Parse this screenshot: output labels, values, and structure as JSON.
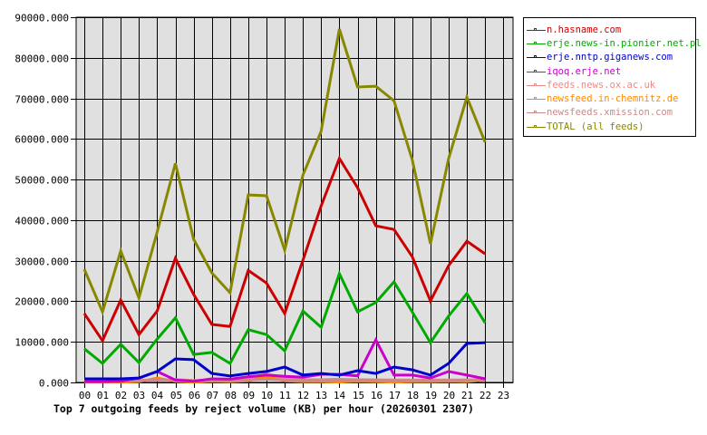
{
  "chart_data": {
    "type": "line",
    "title": "Top 7 outgoing feeds by reject volume (KB) per hour (20260301 2307)",
    "xlabel": "",
    "ylabel": "",
    "ylim": [
      0,
      90000
    ],
    "grid": true,
    "legend_position": "right-top",
    "categories": [
      "00",
      "01",
      "02",
      "03",
      "04",
      "05",
      "06",
      "07",
      "08",
      "09",
      "10",
      "11",
      "12",
      "13",
      "14",
      "15",
      "16",
      "17",
      "18",
      "19",
      "20",
      "21",
      "22",
      "23"
    ],
    "y_ticks": [
      "0.000",
      "10000.000",
      "20000.000",
      "30000.000",
      "40000.000",
      "50000.000",
      "60000.000",
      "70000.000",
      "80000.000",
      "90000.000"
    ],
    "series": [
      {
        "name": "n.hasname.com",
        "color": "#cc0000",
        "values": [
          17000,
          10300,
          20300,
          11800,
          17600,
          30600,
          21700,
          14300,
          13800,
          27600,
          24500,
          17000,
          30100,
          43500,
          55200,
          48000,
          38600,
          37700,
          31000,
          20100,
          28800,
          34800,
          31700,
          null
        ]
      },
      {
        "name": "erje.news-in.pionier.net.pl",
        "color": "#00aa00",
        "values": [
          8300,
          4700,
          9400,
          4900,
          10700,
          15900,
          6900,
          7400,
          4700,
          13000,
          11800,
          7800,
          17600,
          13600,
          26800,
          17400,
          19700,
          24800,
          17400,
          9800,
          16400,
          21900,
          14700,
          null
        ]
      },
      {
        "name": "erje.nntp.giganews.com",
        "color": "#0000cc",
        "values": [
          900,
          900,
          900,
          1100,
          2700,
          5800,
          5600,
          2200,
          1600,
          2200,
          2700,
          3800,
          1800,
          2200,
          1800,
          2900,
          2200,
          3800,
          3100,
          1800,
          4700,
          9600,
          9800,
          null
        ]
      },
      {
        "name": "iqoq.erje.net",
        "color": "#cc00cc",
        "values": [
          200,
          200,
          300,
          1100,
          2700,
          600,
          300,
          900,
          800,
          1400,
          1800,
          1500,
          1300,
          2000,
          2000,
          1600,
          10500,
          1800,
          1800,
          1100,
          2700,
          1800,
          900,
          null
        ]
      },
      {
        "name": "feeds.news.ox.ac.uk",
        "color": "#ee8888",
        "values": [
          400,
          400,
          400,
          500,
          600,
          700,
          500,
          500,
          600,
          900,
          2100,
          1100,
          700,
          700,
          800,
          700,
          600,
          600,
          600,
          600,
          600,
          600,
          600,
          null
        ]
      },
      {
        "name": "newsfeed.in-chemnitz.de",
        "color": "#ff8800",
        "values": [
          100,
          100,
          100,
          200,
          1100,
          300,
          100,
          300,
          200,
          400,
          1500,
          400,
          200,
          200,
          100,
          300,
          200,
          100,
          200,
          200,
          300,
          200,
          600,
          null
        ]
      },
      {
        "name": "newsfeeds.xmission.com",
        "color": "#cc8888",
        "values": [
          400,
          400,
          400,
          500,
          600,
          600,
          400,
          500,
          500,
          600,
          800,
          600,
          500,
          500,
          600,
          600,
          600,
          500,
          500,
          500,
          500,
          600,
          600,
          null
        ]
      },
      {
        "name": "TOTAL (all feeds)",
        "color": "#888800",
        "values": [
          27900,
          17400,
          32400,
          20800,
          37100,
          54000,
          35300,
          27000,
          22100,
          46200,
          46000,
          32600,
          51100,
          61900,
          87100,
          72800,
          73000,
          69400,
          54900,
          34200,
          55200,
          70300,
          59200,
          null
        ]
      }
    ]
  },
  "legend": {
    "items": [
      {
        "label": "n.hasname.com",
        "color": "#cc0000"
      },
      {
        "label": "erje.news-in.pionier.net.pl",
        "color": "#00aa00"
      },
      {
        "label": "erje.nntp.giganews.com",
        "color": "#0000cc"
      },
      {
        "label": "iqoq.erje.net",
        "color": "#cc00cc"
      },
      {
        "label": "feeds.news.ox.ac.uk",
        "color": "#ee8888"
      },
      {
        "label": "newsfeed.in-chemnitz.de",
        "color": "#ff8800"
      },
      {
        "label": "newsfeeds.xmission.com",
        "color": "#cc8888"
      },
      {
        "label": "TOTAL (all feeds)",
        "color": "#888800"
      }
    ]
  },
  "colors": {
    "plot_background": "#e0e0e0",
    "grid": "#000000",
    "page_background": "#ffffff"
  }
}
